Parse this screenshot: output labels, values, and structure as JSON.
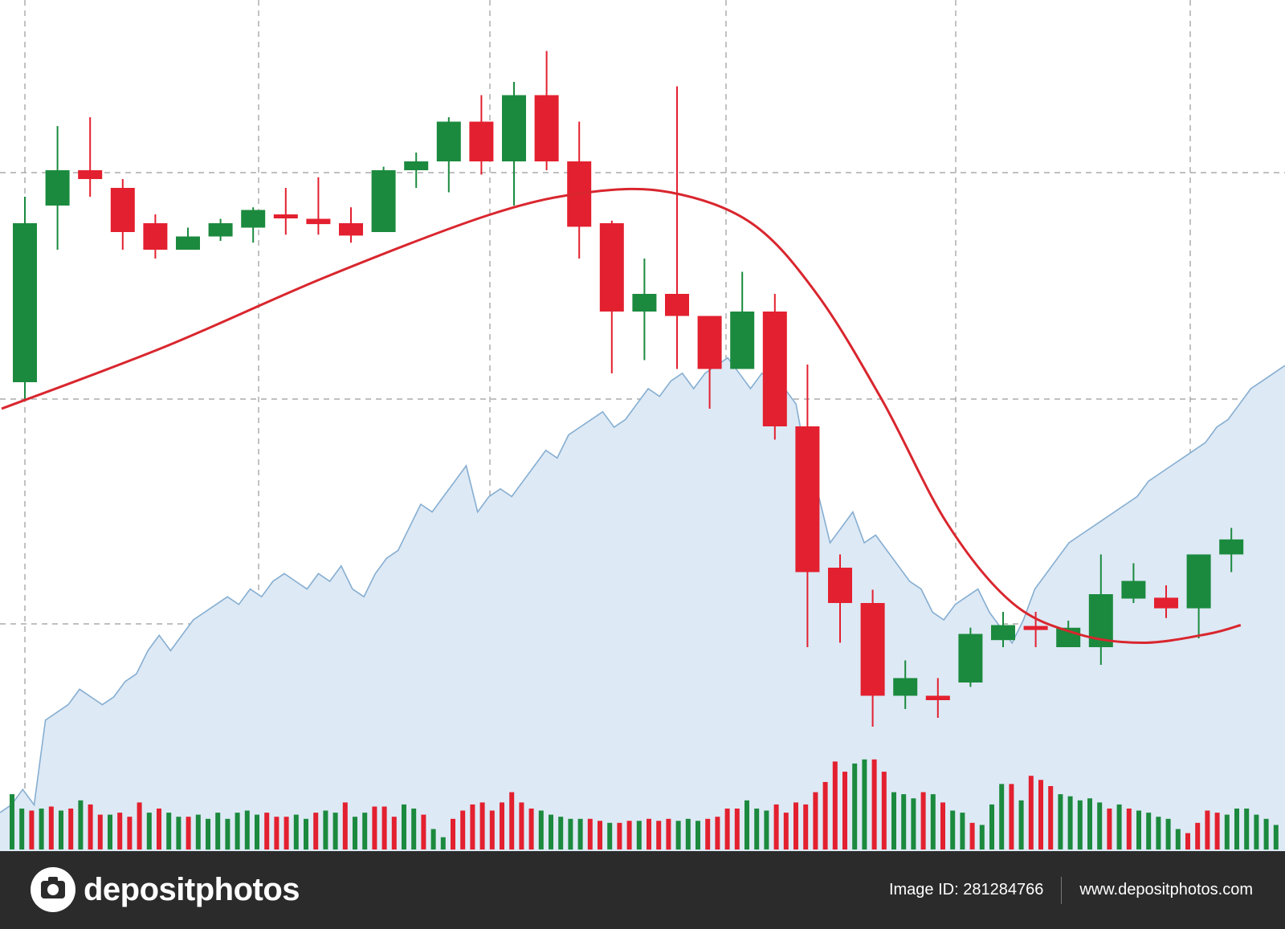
{
  "footer": {
    "brand": "depositphotos",
    "image_id": "Image ID: 281284766",
    "site": "www.depositphotos.com"
  },
  "colors": {
    "bull": "#1b8a3e",
    "bear": "#e3202f",
    "ma": "#d9262e",
    "area_fill": "#dde9f5",
    "area_line": "#86aed1",
    "grid": "#9a9a9a",
    "footer_bg": "#2b2b2b"
  },
  "chart_data": {
    "type": "candlestick",
    "title": "",
    "xlabel": "",
    "ylabel": "",
    "ylim": [
      0,
      100
    ],
    "grid": true,
    "candles": [
      {
        "o": 54,
        "c": 72,
        "h": 75,
        "l": 52
      },
      {
        "o": 74,
        "c": 78,
        "h": 83,
        "l": 69
      },
      {
        "o": 78,
        "c": 77,
        "h": 84,
        "l": 75
      },
      {
        "o": 76,
        "c": 71,
        "h": 77,
        "l": 69
      },
      {
        "o": 72,
        "c": 69,
        "h": 73,
        "l": 68
      },
      {
        "o": 69,
        "c": 70.5,
        "h": 71.5,
        "l": 69
      },
      {
        "o": 70.5,
        "c": 72,
        "h": 72.5,
        "l": 70
      },
      {
        "o": 71.5,
        "c": 73.5,
        "h": 73.8,
        "l": 69.8
      },
      {
        "o": 73,
        "c": 72.6,
        "h": 76,
        "l": 70.7
      },
      {
        "o": 72.5,
        "c": 71.9,
        "h": 77.2,
        "l": 70.7
      },
      {
        "o": 72,
        "c": 70.6,
        "h": 73.8,
        "l": 69.8
      },
      {
        "o": 71,
        "c": 78,
        "h": 78.4,
        "l": 71
      },
      {
        "o": 78,
        "c": 79,
        "h": 80,
        "l": 76
      },
      {
        "o": 79,
        "c": 83.5,
        "h": 84,
        "l": 75.5
      },
      {
        "o": 83.5,
        "c": 79,
        "h": 86.5,
        "l": 77.5
      },
      {
        "o": 79,
        "c": 86.5,
        "h": 88,
        "l": 74
      },
      {
        "o": 86.5,
        "c": 79,
        "h": 91.5,
        "l": 78
      },
      {
        "o": 79,
        "c": 71.6,
        "h": 83.5,
        "l": 68
      },
      {
        "o": 72,
        "c": 62,
        "h": 72.3,
        "l": 55
      },
      {
        "o": 62,
        "c": 64,
        "h": 68,
        "l": 56.5
      },
      {
        "o": 64,
        "c": 61.5,
        "h": 87.5,
        "l": 55.5
      },
      {
        "o": 61.5,
        "c": 55.5,
        "h": 61.5,
        "l": 51
      },
      {
        "o": 55.5,
        "c": 62,
        "h": 66.5,
        "l": 55.5
      },
      {
        "o": 62,
        "c": 49,
        "h": 64,
        "l": 47.5
      },
      {
        "o": 49,
        "c": 32.5,
        "h": 56,
        "l": 24
      },
      {
        "o": 33,
        "c": 29,
        "h": 34.5,
        "l": 24.5
      },
      {
        "o": 29,
        "c": 18.5,
        "h": 30.5,
        "l": 15
      },
      {
        "o": 18.5,
        "c": 20.5,
        "h": 22.5,
        "l": 17
      },
      {
        "o": 18.5,
        "c": 18,
        "h": 20.5,
        "l": 16
      },
      {
        "o": 20,
        "c": 25.5,
        "h": 26.2,
        "l": 19.5
      },
      {
        "o": 24.8,
        "c": 26.5,
        "h": 28,
        "l": 24
      },
      {
        "o": 26.4,
        "c": 26.2,
        "h": 28,
        "l": 24
      },
      {
        "o": 24,
        "c": 26.2,
        "h": 27,
        "l": 24
      },
      {
        "o": 24,
        "c": 30,
        "h": 34.5,
        "l": 22
      },
      {
        "o": 29.5,
        "c": 31.5,
        "h": 33.5,
        "l": 29
      },
      {
        "o": 29.6,
        "c": 28.4,
        "h": 31,
        "l": 27.3
      },
      {
        "o": 28.4,
        "c": 34.5,
        "h": 34.5,
        "l": 25
      },
      {
        "o": 34.5,
        "c": 36.2,
        "h": 37.5,
        "l": 32.5
      }
    ],
    "moving_average": [
      {
        "x": 0,
        "y": 51
      },
      {
        "x": 5,
        "y": 58
      },
      {
        "x": 10,
        "y": 66
      },
      {
        "x": 15,
        "y": 73
      },
      {
        "x": 18,
        "y": 75.5
      },
      {
        "x": 20.5,
        "y": 75.5
      },
      {
        "x": 23,
        "y": 72
      },
      {
        "x": 25,
        "y": 64
      },
      {
        "x": 27,
        "y": 52
      },
      {
        "x": 29,
        "y": 38
      },
      {
        "x": 31,
        "y": 29
      },
      {
        "x": 33,
        "y": 25.5
      },
      {
        "x": 35,
        "y": 24.5
      },
      {
        "x": 37,
        "y": 25.5
      },
      {
        "x": 38,
        "y": 26.5
      }
    ],
    "area_series": [
      5,
      6,
      8,
      6,
      17,
      18,
      19,
      21,
      20,
      19,
      20,
      22,
      23,
      26,
      28,
      26,
      28,
      30,
      31,
      32,
      33,
      32,
      34,
      33,
      35,
      36,
      35,
      34,
      36,
      35,
      37,
      34,
      33,
      36,
      38,
      39,
      42,
      45,
      44,
      46,
      48,
      50,
      44,
      46,
      47,
      46,
      48,
      50,
      52,
      51,
      54,
      55,
      56,
      57,
      55,
      56,
      58,
      60,
      59,
      61,
      62,
      60,
      62,
      63,
      64,
      62,
      60,
      62,
      61,
      60,
      58,
      50,
      46,
      40,
      42,
      44,
      40,
      41,
      39,
      37,
      35,
      34,
      31,
      30,
      32,
      33,
      34,
      31,
      29,
      27,
      30,
      34,
      36,
      38,
      40,
      41,
      42,
      43,
      44,
      45,
      46,
      48,
      49,
      50,
      51,
      52,
      53,
      55,
      56,
      58,
      60,
      61,
      62,
      63
    ],
    "volume": [
      {
        "v": 27,
        "up": true
      },
      {
        "v": 20,
        "up": true
      },
      {
        "v": 19,
        "up": false
      },
      {
        "v": 20,
        "up": true
      },
      {
        "v": 21,
        "up": false
      },
      {
        "v": 19,
        "up": true
      },
      {
        "v": 20,
        "up": false
      },
      {
        "v": 24,
        "up": true
      },
      {
        "v": 22,
        "up": false
      },
      {
        "v": 17,
        "up": false
      },
      {
        "v": 17,
        "up": true
      },
      {
        "v": 18,
        "up": false
      },
      {
        "v": 16,
        "up": false
      },
      {
        "v": 23,
        "up": false
      },
      {
        "v": 18,
        "up": true
      },
      {
        "v": 20,
        "up": false
      },
      {
        "v": 18,
        "up": true
      },
      {
        "v": 16,
        "up": true
      },
      {
        "v": 16,
        "up": false
      },
      {
        "v": 17,
        "up": true
      },
      {
        "v": 15,
        "up": true
      },
      {
        "v": 18,
        "up": true
      },
      {
        "v": 15,
        "up": true
      },
      {
        "v": 18,
        "up": true
      },
      {
        "v": 19,
        "up": true
      },
      {
        "v": 17,
        "up": true
      },
      {
        "v": 18,
        "up": false
      },
      {
        "v": 16,
        "up": false
      },
      {
        "v": 16,
        "up": false
      },
      {
        "v": 17,
        "up": true
      },
      {
        "v": 15,
        "up": true
      },
      {
        "v": 18,
        "up": false
      },
      {
        "v": 19,
        "up": true
      },
      {
        "v": 18,
        "up": true
      },
      {
        "v": 23,
        "up": false
      },
      {
        "v": 16,
        "up": true
      },
      {
        "v": 18,
        "up": true
      },
      {
        "v": 21,
        "up": false
      },
      {
        "v": 21,
        "up": false
      },
      {
        "v": 16,
        "up": false
      },
      {
        "v": 22,
        "up": true
      },
      {
        "v": 20,
        "up": true
      },
      {
        "v": 17,
        "up": false
      },
      {
        "v": 10,
        "up": true
      },
      {
        "v": 6,
        "up": true
      },
      {
        "v": 15,
        "up": false
      },
      {
        "v": 19,
        "up": false
      },
      {
        "v": 22,
        "up": false
      },
      {
        "v": 23,
        "up": false
      },
      {
        "v": 19,
        "up": false
      },
      {
        "v": 23,
        "up": false
      },
      {
        "v": 28,
        "up": false
      },
      {
        "v": 23,
        "up": false
      },
      {
        "v": 20,
        "up": false
      },
      {
        "v": 19,
        "up": true
      },
      {
        "v": 17,
        "up": true
      },
      {
        "v": 16,
        "up": true
      },
      {
        "v": 15,
        "up": true
      },
      {
        "v": 15,
        "up": true
      },
      {
        "v": 15,
        "up": false
      },
      {
        "v": 14,
        "up": false
      },
      {
        "v": 13,
        "up": true
      },
      {
        "v": 13,
        "up": false
      },
      {
        "v": 14,
        "up": false
      },
      {
        "v": 14,
        "up": true
      },
      {
        "v": 15,
        "up": false
      },
      {
        "v": 14,
        "up": false
      },
      {
        "v": 15,
        "up": false
      },
      {
        "v": 14,
        "up": true
      },
      {
        "v": 15,
        "up": true
      },
      {
        "v": 14,
        "up": true
      },
      {
        "v": 15,
        "up": false
      },
      {
        "v": 16,
        "up": false
      },
      {
        "v": 20,
        "up": false
      },
      {
        "v": 20,
        "up": false
      },
      {
        "v": 24,
        "up": true
      },
      {
        "v": 20,
        "up": true
      },
      {
        "v": 19,
        "up": true
      },
      {
        "v": 22,
        "up": false
      },
      {
        "v": 18,
        "up": false
      },
      {
        "v": 23,
        "up": false
      },
      {
        "v": 22,
        "up": false
      },
      {
        "v": 28,
        "up": false
      },
      {
        "v": 33,
        "up": false
      },
      {
        "v": 43,
        "up": false
      },
      {
        "v": 38,
        "up": false
      },
      {
        "v": 42,
        "up": true
      },
      {
        "v": 44,
        "up": true
      },
      {
        "v": 44,
        "up": false
      },
      {
        "v": 38,
        "up": false
      },
      {
        "v": 28,
        "up": true
      },
      {
        "v": 27,
        "up": true
      },
      {
        "v": 25,
        "up": true
      },
      {
        "v": 28,
        "up": false
      },
      {
        "v": 27,
        "up": true
      },
      {
        "v": 23,
        "up": false
      },
      {
        "v": 19,
        "up": true
      },
      {
        "v": 18,
        "up": true
      },
      {
        "v": 13,
        "up": false
      },
      {
        "v": 12,
        "up": true
      },
      {
        "v": 22,
        "up": true
      },
      {
        "v": 32,
        "up": true
      },
      {
        "v": 32,
        "up": false
      },
      {
        "v": 24,
        "up": true
      },
      {
        "v": 36,
        "up": false
      },
      {
        "v": 34,
        "up": false
      },
      {
        "v": 31,
        "up": false
      },
      {
        "v": 27,
        "up": true
      },
      {
        "v": 26,
        "up": true
      },
      {
        "v": 24,
        "up": true
      },
      {
        "v": 25,
        "up": true
      },
      {
        "v": 23,
        "up": true
      },
      {
        "v": 20,
        "up": false
      },
      {
        "v": 22,
        "up": true
      },
      {
        "v": 20,
        "up": false
      },
      {
        "v": 19,
        "up": true
      },
      {
        "v": 18,
        "up": true
      },
      {
        "v": 16,
        "up": true
      },
      {
        "v": 15,
        "up": true
      },
      {
        "v": 10,
        "up": true
      },
      {
        "v": 8,
        "up": false
      },
      {
        "v": 13,
        "up": false
      },
      {
        "v": 19,
        "up": false
      },
      {
        "v": 18,
        "up": false
      },
      {
        "v": 17,
        "up": true
      },
      {
        "v": 20,
        "up": true
      },
      {
        "v": 20,
        "up": true
      },
      {
        "v": 17,
        "up": true
      },
      {
        "v": 15,
        "up": true
      },
      {
        "v": 12,
        "up": true
      }
    ]
  }
}
